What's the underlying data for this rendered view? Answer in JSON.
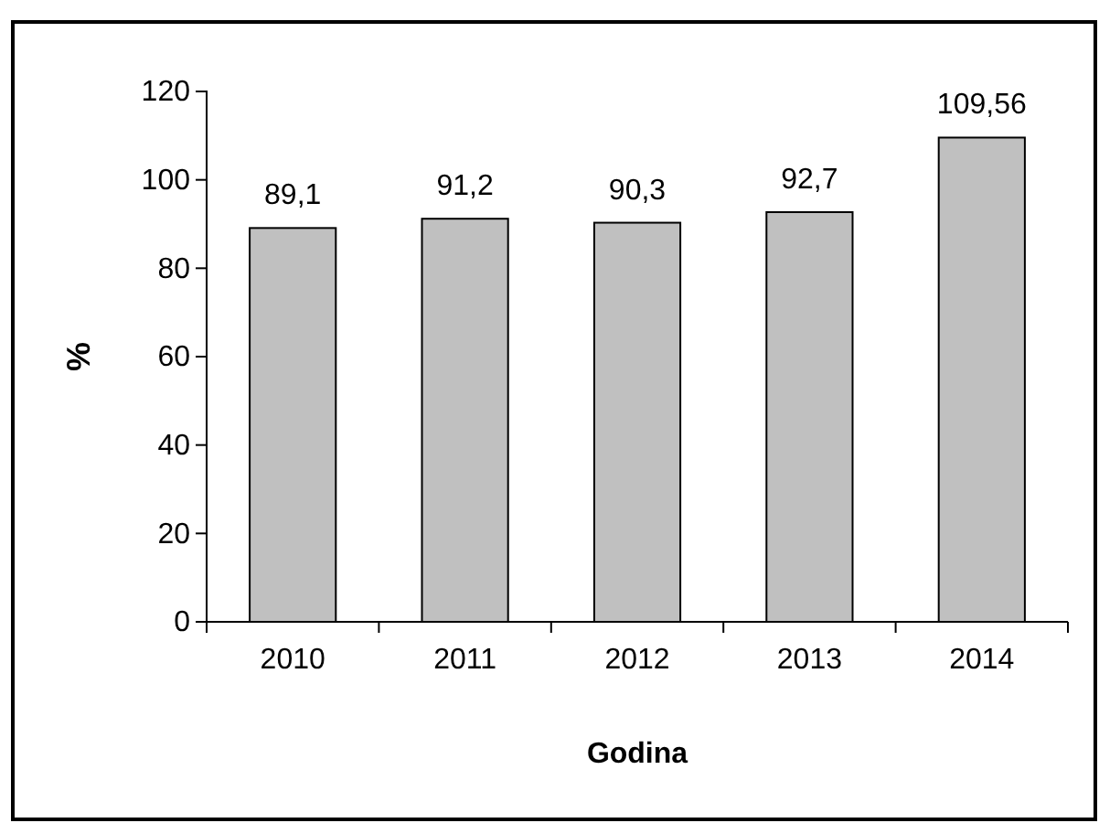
{
  "chart_data": {
    "type": "bar",
    "xlabel": "Godina",
    "ylabel": "%",
    "categories": [
      "2010",
      "2011",
      "2012",
      "2013",
      "2014"
    ],
    "values": [
      89.1,
      91.2,
      90.3,
      92.7,
      109.56
    ],
    "value_labels": [
      "89,1",
      "91,2",
      "90,3",
      "92,7",
      "109,56"
    ],
    "color": "#c0c0c0",
    "ylim": [
      0,
      120
    ],
    "yticks": [
      0,
      20,
      40,
      60,
      80,
      100,
      120
    ]
  }
}
